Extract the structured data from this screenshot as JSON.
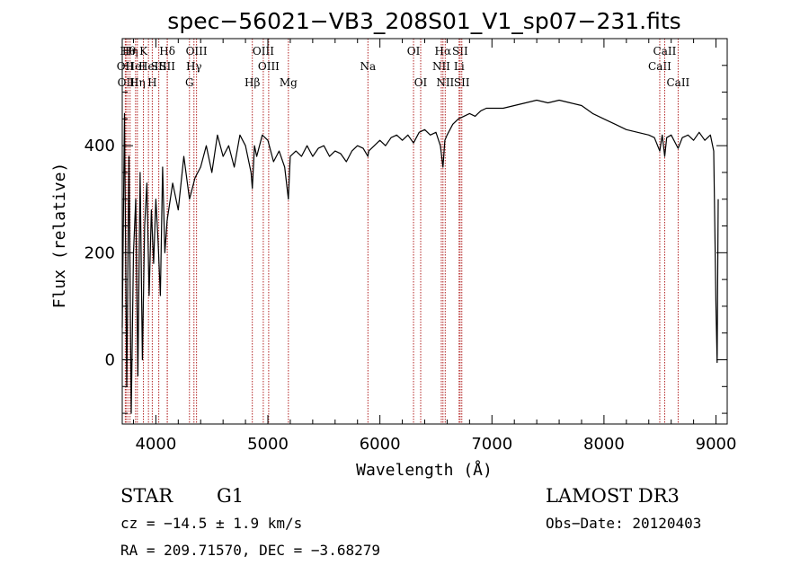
{
  "chart_data": {
    "type": "line",
    "title": "spec−56021−VB3_208S01_V1_sp07−231.fits",
    "xlabel": "Wavelength (Å)",
    "ylabel": "Flux (relative)",
    "xlim": [
      3700,
      9100
    ],
    "ylim": [
      -120,
      600
    ],
    "x_ticks": [
      4000,
      5000,
      6000,
      7000,
      8000,
      9000
    ],
    "y_ticks": [
      0,
      200,
      400
    ],
    "line_color": "#000000",
    "marker_color": "#b22222",
    "series": [
      {
        "name": "spectrum",
        "x": [
          3700,
          3720,
          3740,
          3760,
          3780,
          3800,
          3820,
          3840,
          3860,
          3880,
          3900,
          3920,
          3940,
          3960,
          3980,
          4000,
          4020,
          4040,
          4060,
          4080,
          4100,
          4150,
          4200,
          4250,
          4300,
          4350,
          4400,
          4450,
          4500,
          4550,
          4600,
          4650,
          4700,
          4750,
          4800,
          4850,
          4861,
          4880,
          4900,
          4950,
          5000,
          5050,
          5100,
          5150,
          5183,
          5200,
          5250,
          5300,
          5350,
          5400,
          5450,
          5500,
          5550,
          5600,
          5650,
          5700,
          5750,
          5800,
          5850,
          5893,
          5900,
          5950,
          6000,
          6050,
          6100,
          6150,
          6200,
          6250,
          6300,
          6350,
          6400,
          6450,
          6500,
          6540,
          6563,
          6580,
          6600,
          6650,
          6700,
          6750,
          6800,
          6850,
          6900,
          6950,
          7000,
          7100,
          7200,
          7300,
          7400,
          7500,
          7600,
          7700,
          7800,
          7900,
          8000,
          8100,
          8200,
          8300,
          8400,
          8450,
          8498,
          8520,
          8542,
          8560,
          8600,
          8662,
          8700,
          8750,
          8800,
          8850,
          8900,
          8950,
          8980,
          9000,
          9010,
          9020
        ],
        "y": [
          60,
          460,
          -50,
          380,
          -100,
          200,
          300,
          -30,
          350,
          0,
          250,
          330,
          120,
          280,
          180,
          300,
          220,
          120,
          360,
          200,
          260,
          330,
          280,
          380,
          300,
          340,
          360,
          400,
          350,
          420,
          380,
          400,
          360,
          420,
          400,
          350,
          320,
          400,
          380,
          420,
          410,
          370,
          390,
          360,
          300,
          380,
          390,
          380,
          400,
          380,
          395,
          400,
          380,
          390,
          385,
          370,
          390,
          400,
          395,
          380,
          390,
          400,
          410,
          400,
          415,
          420,
          410,
          420,
          405,
          425,
          430,
          420,
          425,
          400,
          360,
          410,
          420,
          440,
          450,
          455,
          460,
          455,
          465,
          470,
          470,
          470,
          475,
          480,
          485,
          480,
          485,
          480,
          475,
          460,
          450,
          440,
          430,
          425,
          420,
          415,
          390,
          420,
          380,
          415,
          420,
          395,
          415,
          420,
          410,
          425,
          410,
          420,
          390,
          100,
          -5,
          300
        ]
      }
    ],
    "line_markers": [
      {
        "wl": 3727,
        "row": 2,
        "label": "OII"
      },
      {
        "wl": 3734,
        "row": 3,
        "label": "OII"
      },
      {
        "wl": 3750,
        "row": 1,
        "label": "Hθ"
      },
      {
        "wl": 3770,
        "row": 1,
        "label": "Hη"
      },
      {
        "wl": 3819,
        "row": 2,
        "label": "HeI"
      },
      {
        "wl": 3835,
        "row": 3,
        "label": "Hη"
      },
      {
        "wl": 3889,
        "row": 1,
        "label": "K"
      },
      {
        "wl": 3934,
        "row": 2,
        "label": "HeI"
      },
      {
        "wl": 3968,
        "row": 3,
        "label": "H"
      },
      {
        "wl": 4026,
        "row": 2,
        "label": "SII"
      },
      {
        "wl": 4102,
        "row": 1,
        "label": "Hδ"
      },
      {
        "wl": 4102,
        "row": 2,
        "label": "SII"
      },
      {
        "wl": 4300,
        "row": 3,
        "label": "G"
      },
      {
        "wl": 4340,
        "row": 2,
        "label": "Hγ"
      },
      {
        "wl": 4363,
        "row": 1,
        "label": "OIII"
      },
      {
        "wl": 4861,
        "row": 3,
        "label": "Hβ"
      },
      {
        "wl": 4959,
        "row": 1,
        "label": "OIII"
      },
      {
        "wl": 5007,
        "row": 2,
        "label": "OIII"
      },
      {
        "wl": 5183,
        "row": 3,
        "label": "Mg"
      },
      {
        "wl": 5893,
        "row": 2,
        "label": "Na"
      },
      {
        "wl": 6300,
        "row": 1,
        "label": "OI"
      },
      {
        "wl": 6364,
        "row": 3,
        "label": "OI"
      },
      {
        "wl": 6548,
        "row": 2,
        "label": "NII"
      },
      {
        "wl": 6563,
        "row": 1,
        "label": "Hα"
      },
      {
        "wl": 6583,
        "row": 3,
        "label": "NII"
      },
      {
        "wl": 6707,
        "row": 2,
        "label": "Li"
      },
      {
        "wl": 6716,
        "row": 1,
        "label": "SII"
      },
      {
        "wl": 6731,
        "row": 3,
        "label": "SII"
      },
      {
        "wl": 8498,
        "row": 2,
        "label": "CaII"
      },
      {
        "wl": 8542,
        "row": 1,
        "label": "CaII"
      },
      {
        "wl": 8662,
        "row": 3,
        "label": "CaII"
      }
    ]
  },
  "info": {
    "class": "STAR",
    "subclass": "G1",
    "survey": "LAMOST DR3",
    "cz": "cz = −14.5 ± 1.9 km/s",
    "obs_date": "Obs−Date: 20120403",
    "coords": "RA = 209.71570, DEC =  −3.68279"
  }
}
